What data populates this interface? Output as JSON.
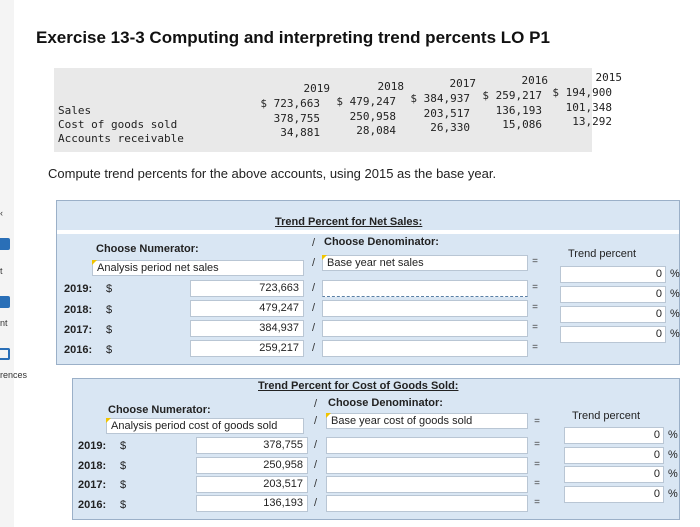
{
  "sidebar": {
    "labels": [
      "t",
      "nt",
      "rences"
    ]
  },
  "title": "Exercise 13-3 Computing and interpreting trend percents LO P1",
  "data_table": {
    "years": [
      "2019",
      "2018",
      "2017",
      "2016",
      "2015"
    ],
    "rows": [
      {
        "label": "Sales",
        "values": [
          "$ 723,663",
          "$ 479,247",
          "$ 384,937",
          "$ 259,217",
          "$ 194,900"
        ]
      },
      {
        "label": "Cost of goods sold",
        "values": [
          "378,755",
          "250,958",
          "203,517",
          "136,193",
          "101,348"
        ]
      },
      {
        "label": "Accounts receivable",
        "values": [
          "34,881",
          "28,084",
          "26,330",
          "15,086",
          "13,292"
        ]
      }
    ]
  },
  "instruction": "Compute trend percents for the above accounts, using 2015 as the base year.",
  "sales_panel": {
    "title": "Trend Percent for Net Sales:",
    "numerator_label": "Choose Numerator:",
    "slash": "/",
    "denominator_label": "Choose Denominator:",
    "numerator_value": "Analysis period net sales",
    "denominator_value": "Base year net sales",
    "equals": "=",
    "result_header": "Trend percent",
    "rows": [
      {
        "year": "2019:",
        "dollar": "$",
        "amount": "723,663",
        "slash": "/",
        "equals": "=",
        "percent": "0",
        "pct_sign": "%"
      },
      {
        "year": "2018:",
        "dollar": "$",
        "amount": "479,247",
        "slash": "/",
        "equals": "=",
        "percent": "0",
        "pct_sign": "%"
      },
      {
        "year": "2017:",
        "dollar": "$",
        "amount": "384,937",
        "slash": "/",
        "equals": "=",
        "percent": "0",
        "pct_sign": "%"
      },
      {
        "year": "2016:",
        "dollar": "$",
        "amount": "259,217",
        "slash": "/",
        "equals": "=",
        "percent": "0",
        "pct_sign": "%"
      }
    ]
  },
  "cogs_panel": {
    "title": "Trend Percent for Cost of Goods Sold:",
    "numerator_label": "Choose Numerator:",
    "slash": "/",
    "denominator_label": "Choose Denominator:",
    "numerator_value": "Analysis period cost of goods sold",
    "denominator_value": "Base year cost of goods sold",
    "equals": "=",
    "result_header": "Trend percent",
    "rows": [
      {
        "year": "2019:",
        "dollar": "$",
        "amount": "378,755",
        "slash": "/",
        "equals": "=",
        "percent": "0",
        "pct_sign": "%"
      },
      {
        "year": "2018:",
        "dollar": "$",
        "amount": "250,958",
        "slash": "/",
        "equals": "=",
        "percent": "0",
        "pct_sign": "%"
      },
      {
        "year": "2017:",
        "dollar": "$",
        "amount": "203,517",
        "slash": "/",
        "equals": "=",
        "percent": "0",
        "pct_sign": "%"
      },
      {
        "year": "2016:",
        "dollar": "$",
        "amount": "136,193",
        "slash": "/",
        "equals": "=",
        "percent": "0",
        "pct_sign": "%"
      }
    ]
  },
  "colors": {
    "panel_bg": "#d9e6f3",
    "data_box_bg": "#e9e9e9",
    "accent": "#2a6fb7"
  }
}
